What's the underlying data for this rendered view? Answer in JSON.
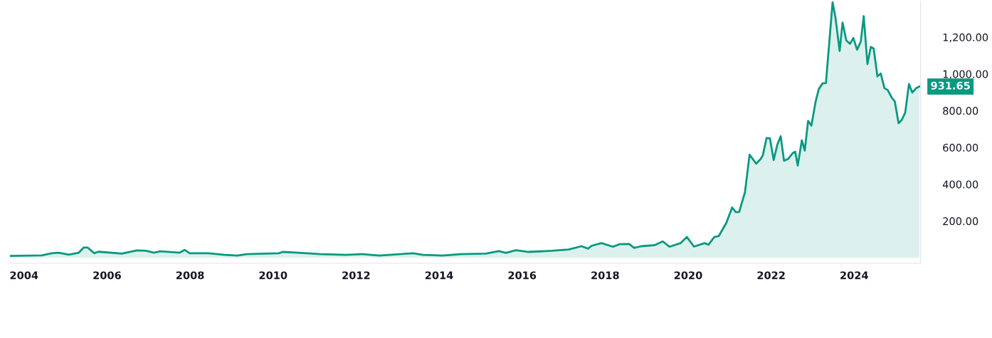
{
  "chart_data": {
    "type": "area",
    "color": "#089981",
    "x": [
      2003.66,
      2004.43,
      2004.67,
      2004.83,
      2005.08,
      2005.32,
      2005.44,
      2005.53,
      2005.69,
      2005.79,
      2006.36,
      2006.72,
      2006.94,
      2007.13,
      2007.28,
      2007.75,
      2007.87,
      2007.99,
      2008.44,
      2008.83,
      2009.14,
      2009.37,
      2010.14,
      2010.23,
      2010.6,
      2011.14,
      2011.76,
      2012.15,
      2012.56,
      2013.37,
      2013.61,
      2014.08,
      2014.54,
      2015.13,
      2015.44,
      2015.61,
      2015.85,
      2016.16,
      2016.72,
      2017.12,
      2017.43,
      2017.59,
      2017.67,
      2017.91,
      2018.19,
      2018.35,
      2018.58,
      2018.7,
      2018.87,
      2019.18,
      2019.39,
      2019.55,
      2019.82,
      2019.97,
      2020.14,
      2020.4,
      2020.49,
      2020.63,
      2020.74,
      2020.92,
      2021.06,
      2021.15,
      2021.23,
      2021.37,
      2021.48,
      2021.64,
      2021.75,
      2021.8,
      2021.89,
      2021.97,
      2022.06,
      2022.15,
      2022.23,
      2022.31,
      2022.41,
      2022.52,
      2022.58,
      2022.64,
      2022.74,
      2022.81,
      2022.89,
      2022.97,
      2023.07,
      2023.15,
      2023.24,
      2023.32,
      2023.48,
      2023.55,
      2023.65,
      2023.72,
      2023.81,
      2023.9,
      2023.98,
      2024.07,
      2024.16,
      2024.23,
      2024.32,
      2024.4,
      2024.47,
      2024.56,
      2024.64,
      2024.73,
      2024.81,
      2024.9,
      2024.98,
      2025.07,
      2025.15,
      2025.23,
      2025.32,
      2025.4,
      2025.49,
      2025.57
    ],
    "values": [
      10,
      13,
      25,
      28,
      17,
      28,
      56,
      56,
      25,
      33,
      23,
      40,
      38,
      28,
      35,
      28,
      43,
      25,
      25,
      16,
      12,
      20,
      25,
      32,
      28,
      20,
      16,
      20,
      12,
      25,
      16,
      12,
      20,
      23,
      36,
      27,
      41,
      32,
      38,
      45,
      63,
      50,
      65,
      80,
      60,
      74,
      75,
      54,
      63,
      68,
      89,
      60,
      80,
      113,
      61,
      80,
      71,
      113,
      119,
      190,
      274,
      248,
      249,
      358,
      561,
      512,
      538,
      558,
      652,
      650,
      532,
      616,
      661,
      528,
      538,
      570,
      577,
      502,
      639,
      583,
      745,
      719,
      848,
      919,
      949,
      951,
      1390,
      1306,
      1125,
      1280,
      1183,
      1164,
      1196,
      1132,
      1177,
      1315,
      1054,
      1147,
      1138,
      987,
      1003,
      923,
      912,
      873,
      850,
      732,
      751,
      790,
      945,
      899,
      922,
      931.65
    ],
    "xlim": [
      2003.66,
      2025.6
    ],
    "ylim": [
      -30,
      1395
    ],
    "xticks": [
      2004,
      2006,
      2008,
      2010,
      2012,
      2014,
      2016,
      2018,
      2020,
      2022,
      2024
    ],
    "yticks": [
      {
        "value": 200,
        "label": "200.00"
      },
      {
        "value": 400,
        "label": "400.00"
      },
      {
        "value": 600,
        "label": "600.00"
      },
      {
        "value": 800,
        "label": "800.00"
      },
      {
        "value": 1000,
        "label": "1,000.00"
      },
      {
        "value": 1200,
        "label": "1,200.00"
      }
    ],
    "annotations": [
      "931.65"
    ],
    "grid": false,
    "legend": false
  }
}
